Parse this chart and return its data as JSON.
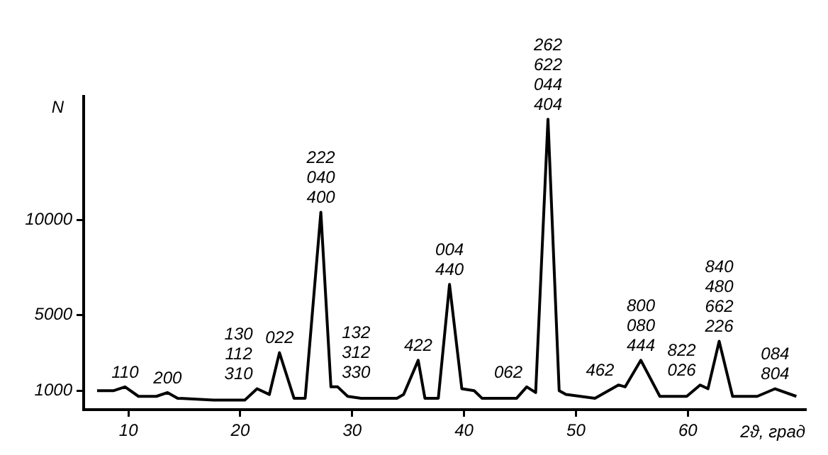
{
  "chart_data": {
    "type": "line",
    "xlabel": "2ϑ, град",
    "ylabel": "N",
    "x": [
      7.2,
      8.7,
      9.7,
      10.9,
      12.5,
      13.5,
      14.4,
      17.6,
      20.4,
      21.5,
      22.6,
      23.5,
      24.8,
      25.8,
      27.2,
      28.1,
      28.7,
      29.6,
      30.8,
      34.0,
      34.6,
      35.9,
      36.5,
      37.7,
      38.7,
      39.8,
      40.9,
      41.6,
      44.7,
      45.6,
      46.4,
      47.5,
      48.5,
      49.1,
      51.7,
      53.8,
      54.4,
      55.8,
      57.5,
      59.9,
      61.1,
      61.8,
      62.8,
      64.0,
      66.2,
      67.8,
      69.7
    ],
    "series": [
      {
        "color": "#000000",
        "values": [
          1000,
          1000,
          1200,
          700,
          700,
          900,
          600,
          500,
          500,
          1100,
          800,
          3000,
          600,
          600,
          10400,
          1200,
          1200,
          700,
          600,
          600,
          800,
          2600,
          600,
          600,
          6600,
          1100,
          1000,
          600,
          600,
          1200,
          900,
          15300,
          1000,
          800,
          600,
          1300,
          1200,
          2600,
          700,
          700,
          1300,
          1100,
          3600,
          700,
          700,
          1100,
          700
        ]
      }
    ],
    "xlim": [
      6,
      70.5
    ],
    "xticks": [
      10,
      20,
      30,
      40,
      50,
      60
    ],
    "ylim": [
      0,
      16500
    ],
    "yticks": [
      1000,
      5000,
      10000
    ],
    "grid": false,
    "legend": false,
    "marker": "none",
    "line_style": "solid",
    "annotations": [
      {
        "text": "110",
        "x": 9.7,
        "y": 1200
      },
      {
        "text": "200",
        "x": 13.5,
        "y": 900
      },
      {
        "text": "130\n112\n310",
        "x": 21.5,
        "y": 1100
      },
      {
        "text": "022",
        "x": 23.5,
        "y": 3000
      },
      {
        "text": "222\n040\n400",
        "x": 27.2,
        "y": 10400
      },
      {
        "text": "132\n312\n330",
        "x": 28.7,
        "y": 1200
      },
      {
        "text": "422",
        "x": 35.9,
        "y": 2600
      },
      {
        "text": "004\n440",
        "x": 38.7,
        "y": 6600
      },
      {
        "text": "062",
        "x": 45.6,
        "y": 1200
      },
      {
        "text": "262\n622\n044\n404",
        "x": 47.5,
        "y": 15300
      },
      {
        "text": "462",
        "x": 53.8,
        "y": 1300
      },
      {
        "text": "800\n080\n444",
        "x": 55.8,
        "y": 2600
      },
      {
        "text": "822\n026",
        "x": 61.1,
        "y": 1300
      },
      {
        "text": "840\n480\n662\n226",
        "x": 62.8,
        "y": 3600
      },
      {
        "text": "084\n804",
        "x": 67.8,
        "y": 1100
      }
    ]
  }
}
